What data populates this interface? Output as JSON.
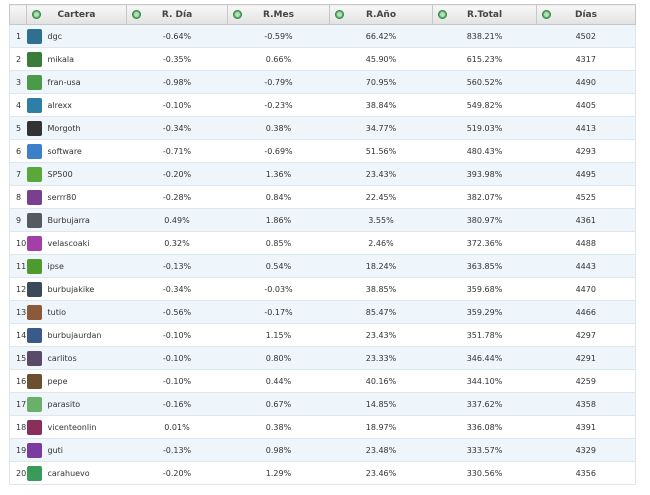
{
  "headers": [
    "Cartera",
    "R. Día",
    "R.Mes",
    "R.Año",
    "R.Total",
    "Días"
  ],
  "rows": [
    {
      "rank": "1",
      "name": "dgc",
      "dia": "-0.64%",
      "mes": "-0.59%",
      "ano": "66.42%",
      "total": "838.21%",
      "dias": "4502",
      "avatar_color": "#2f6f8f"
    },
    {
      "rank": "2",
      "name": "mikala",
      "dia": "-0.35%",
      "mes": "0.66%",
      "ano": "45.90%",
      "total": "615.23%",
      "dias": "4317",
      "avatar_color": "#3a7d3a"
    },
    {
      "rank": "3",
      "name": "fran-usa",
      "dia": "-0.98%",
      "mes": "-0.79%",
      "ano": "70.95%",
      "total": "560.52%",
      "dias": "4490",
      "avatar_color": "#4a9a4a"
    },
    {
      "rank": "4",
      "name": "alrexx",
      "dia": "-0.10%",
      "mes": "-0.23%",
      "ano": "38.84%",
      "total": "549.82%",
      "dias": "4405",
      "avatar_color": "#2e7fa8"
    },
    {
      "rank": "5",
      "name": "Morgoth",
      "dia": "-0.34%",
      "mes": "0.38%",
      "ano": "34.77%",
      "total": "519.03%",
      "dias": "4413",
      "avatar_color": "#333333"
    },
    {
      "rank": "6",
      "name": "software",
      "dia": "-0.71%",
      "mes": "-0.69%",
      "ano": "51.56%",
      "total": "480.43%",
      "dias": "4293",
      "avatar_color": "#3d7fc9"
    },
    {
      "rank": "7",
      "name": "SP500",
      "dia": "-0.20%",
      "mes": "1.36%",
      "ano": "23.43%",
      "total": "393.98%",
      "dias": "4495",
      "avatar_color": "#5aa83a"
    },
    {
      "rank": "8",
      "name": "serrr80",
      "dia": "-0.28%",
      "mes": "0.84%",
      "ano": "22.45%",
      "total": "382.07%",
      "dias": "4525",
      "avatar_color": "#7a3f8f"
    },
    {
      "rank": "9",
      "name": "Burbujarra",
      "dia": "0.49%",
      "mes": "1.86%",
      "ano": "3.55%",
      "total": "380.97%",
      "dias": "4361",
      "avatar_color": "#555a60"
    },
    {
      "rank": "10",
      "name": "velascoaki",
      "dia": "0.32%",
      "mes": "0.85%",
      "ano": "2.46%",
      "total": "372.36%",
      "dias": "4488",
      "avatar_color": "#a43fa8"
    },
    {
      "rank": "11",
      "name": "ipse",
      "dia": "-0.13%",
      "mes": "0.54%",
      "ano": "18.24%",
      "total": "363.85%",
      "dias": "4443",
      "avatar_color": "#4f9a2e"
    },
    {
      "rank": "12",
      "name": "burbujakike",
      "dia": "-0.34%",
      "mes": "-0.03%",
      "ano": "38.85%",
      "total": "359.68%",
      "dias": "4470",
      "avatar_color": "#3b4a5a"
    },
    {
      "rank": "13",
      "name": "tutio",
      "dia": "-0.56%",
      "mes": "-0.17%",
      "ano": "85.47%",
      "total": "359.29%",
      "dias": "4466",
      "avatar_color": "#8a5a3a"
    },
    {
      "rank": "14",
      "name": "burbujaurdan",
      "dia": "-0.10%",
      "mes": "1.15%",
      "ano": "23.43%",
      "total": "351.78%",
      "dias": "4297",
      "avatar_color": "#3a5a8a"
    },
    {
      "rank": "15",
      "name": "carlitos",
      "dia": "-0.10%",
      "mes": "0.80%",
      "ano": "23.33%",
      "total": "346.44%",
      "dias": "4291",
      "avatar_color": "#5a4a6a"
    },
    {
      "rank": "16",
      "name": "pepe",
      "dia": "-0.10%",
      "mes": "0.44%",
      "ano": "40.16%",
      "total": "344.10%",
      "dias": "4259",
      "avatar_color": "#6a5030"
    },
    {
      "rank": "17",
      "name": "parasito",
      "dia": "-0.16%",
      "mes": "0.67%",
      "ano": "14.85%",
      "total": "337.62%",
      "dias": "4358",
      "avatar_color": "#6ab06a"
    },
    {
      "rank": "18",
      "name": "vicenteonlin",
      "dia": "0.01%",
      "mes": "0.38%",
      "ano": "18.97%",
      "total": "336.08%",
      "dias": "4391",
      "avatar_color": "#8a2f5a"
    },
    {
      "rank": "19",
      "name": "guti",
      "dia": "-0.13%",
      "mes": "0.98%",
      "ano": "23.48%",
      "total": "333.57%",
      "dias": "4329",
      "avatar_color": "#7a3aa0"
    },
    {
      "rank": "20",
      "name": "carahuevo",
      "dia": "-0.20%",
      "mes": "1.29%",
      "ano": "23.46%",
      "total": "330.56%",
      "dias": "4356",
      "avatar_color": "#3a9a5a"
    }
  ],
  "colors": {
    "negative": "#e03030",
    "positive": "#2b8a2b",
    "row_alt": "#eef5fb"
  }
}
